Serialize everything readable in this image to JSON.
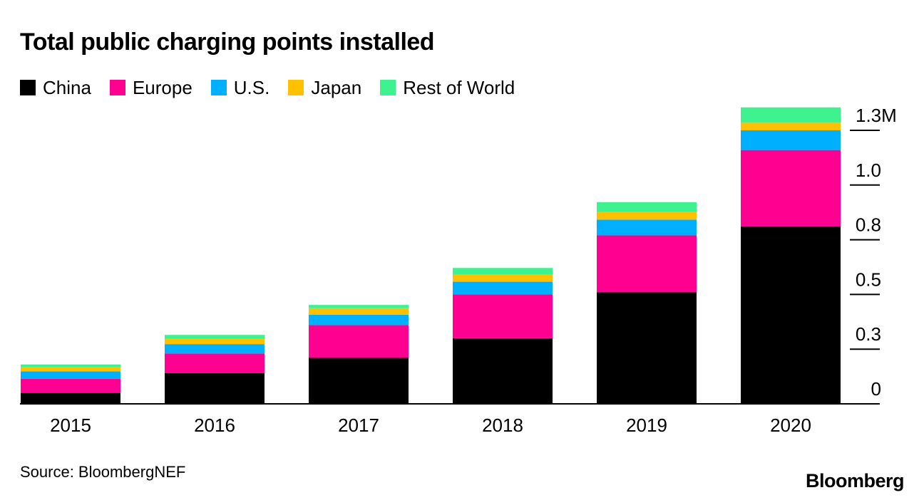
{
  "chart_data": {
    "type": "bar",
    "stacked": true,
    "title": "Total public charging points installed",
    "categories": [
      "2015",
      "2016",
      "2017",
      "2018",
      "2019",
      "2020"
    ],
    "series": [
      {
        "name": "China",
        "color": "#000000",
        "values": [
          0.05,
          0.14,
          0.21,
          0.3,
          0.51,
          0.81
        ]
      },
      {
        "name": "Europe",
        "color": "#ff0090",
        "values": [
          0.065,
          0.09,
          0.15,
          0.2,
          0.26,
          0.35
        ]
      },
      {
        "name": "U.S.",
        "color": "#00b0ff",
        "values": [
          0.033,
          0.043,
          0.047,
          0.058,
          0.072,
          0.09
        ]
      },
      {
        "name": "Japan",
        "color": "#ffc000",
        "values": [
          0.02,
          0.025,
          0.03,
          0.033,
          0.035,
          0.035
        ]
      },
      {
        "name": "Rest of World",
        "color": "#3ef28f",
        "values": [
          0.012,
          0.017,
          0.015,
          0.03,
          0.045,
          0.07
        ]
      }
    ],
    "ylim": [
      0,
      1.35
    ],
    "yticks": [
      {
        "value": 0,
        "label": "0"
      },
      {
        "value": 0.25,
        "label": "0.3"
      },
      {
        "value": 0.5,
        "label": "0.5"
      },
      {
        "value": 0.75,
        "label": "0.8"
      },
      {
        "value": 1.0,
        "label": "1.0"
      },
      {
        "value": 1.25,
        "label": "1.3M"
      }
    ],
    "y_axis_side": "right",
    "legend_position": "top",
    "grid": false,
    "source": "Source: BloombergNEF",
    "brand": "Bloomberg"
  }
}
